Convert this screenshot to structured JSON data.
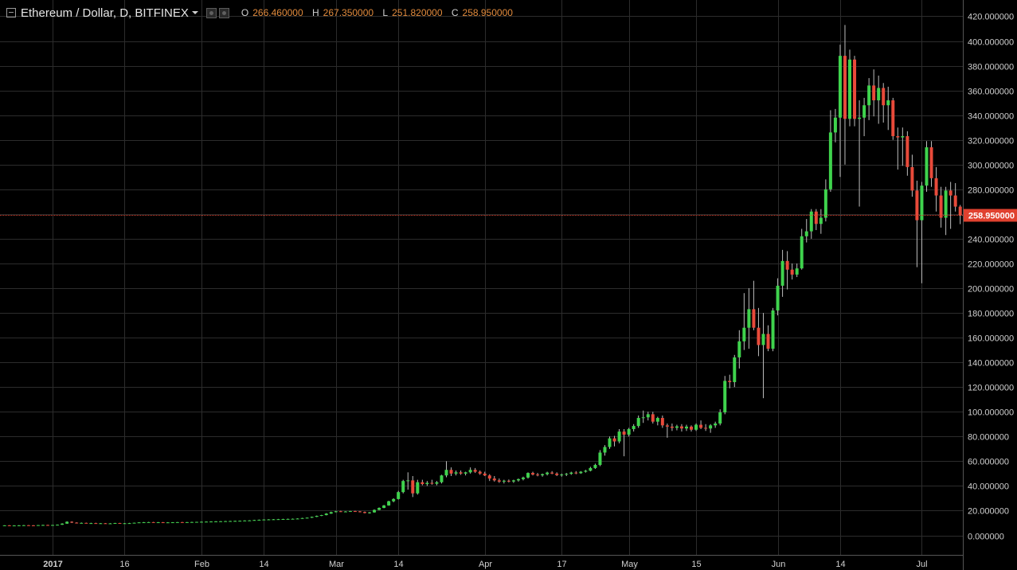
{
  "header": {
    "symbol": "Ethereum / Dollar, D, BITFINEX",
    "ohlc": [
      {
        "label": "O",
        "value": "266.460000"
      },
      {
        "label": "H",
        "value": "267.350000"
      },
      {
        "label": "L",
        "value": "251.820000"
      },
      {
        "label": "C",
        "value": "258.950000"
      }
    ]
  },
  "price_tag": "258.950000",
  "colors": {
    "up": "#3fd34d",
    "down": "#e84a3a",
    "grid": "#2c2c2c",
    "axis_text": "#d0d0d0",
    "price_line": "#d8412f"
  },
  "chart_data": {
    "type": "candlestick",
    "interval": "daily",
    "ylim": [
      -20,
      420
    ],
    "y_ticks": [
      "420.000000",
      "400.000000",
      "380.000000",
      "360.000000",
      "340.000000",
      "320.000000",
      "300.000000",
      "280.000000",
      "260.000000",
      "240.000000",
      "220.000000",
      "200.000000",
      "180.000000",
      "160.000000",
      "140.000000",
      "120.000000",
      "100.000000",
      "80.000000",
      "60.000000",
      "40.000000",
      "20.000000",
      "0.000000"
    ],
    "y_tick_values": [
      420,
      400,
      380,
      360,
      340,
      320,
      300,
      280,
      260,
      240,
      220,
      200,
      180,
      160,
      140,
      120,
      100,
      80,
      60,
      40,
      20,
      0
    ],
    "x_ticks": [
      "2017",
      "16",
      "Feb",
      "14",
      "Mar",
      "14",
      "Apr",
      "17",
      "May",
      "15",
      "Jun",
      "14",
      "Jul"
    ],
    "x_tick_days": [
      1,
      16,
      32,
      45,
      60,
      73,
      91,
      107,
      121,
      135,
      152,
      165,
      182
    ],
    "last_price": 258.95,
    "candles": [
      [
        -9,
        8.0,
        8.2,
        7.9,
        8.1
      ],
      [
        -8,
        8.1,
        8.3,
        7.9,
        8.0
      ],
      [
        -7,
        8.0,
        8.2,
        7.8,
        8.0
      ],
      [
        -6,
        8.0,
        8.3,
        7.9,
        8.1
      ],
      [
        -5,
        8.1,
        8.4,
        8.0,
        8.2
      ],
      [
        -4,
        8.2,
        8.4,
        8.0,
        8.1
      ],
      [
        -3,
        8.1,
        8.3,
        7.9,
        8.0
      ],
      [
        -2,
        8.0,
        8.4,
        7.9,
        8.3
      ],
      [
        -1,
        8.3,
        8.6,
        8.1,
        8.4
      ],
      [
        0,
        8.4,
        8.6,
        8.2,
        8.3
      ],
      [
        1,
        8.3,
        8.5,
        8.1,
        8.4
      ],
      [
        2,
        8.4,
        8.8,
        8.3,
        8.6
      ],
      [
        3,
        8.6,
        9.8,
        8.5,
        9.5
      ],
      [
        4,
        9.5,
        11.4,
        9.3,
        11.0
      ],
      [
        5,
        11.0,
        11.4,
        10.0,
        10.3
      ],
      [
        6,
        10.3,
        10.6,
        9.6,
        10.0
      ],
      [
        7,
        10.0,
        10.4,
        9.6,
        10.1
      ],
      [
        8,
        10.1,
        10.3,
        9.6,
        9.8
      ],
      [
        9,
        9.8,
        10.2,
        9.5,
        9.9
      ],
      [
        10,
        9.9,
        10.2,
        9.6,
        9.7
      ],
      [
        11,
        9.7,
        10.0,
        9.5,
        9.8
      ],
      [
        12,
        9.8,
        10.0,
        9.5,
        9.6
      ],
      [
        13,
        9.6,
        9.9,
        9.4,
        9.7
      ],
      [
        14,
        9.7,
        10.1,
        9.5,
        10.0
      ],
      [
        15,
        10.0,
        10.1,
        9.6,
        9.7
      ],
      [
        16,
        9.7,
        10.0,
        9.5,
        9.8
      ],
      [
        17,
        9.8,
        10.1,
        9.6,
        9.9
      ],
      [
        18,
        9.9,
        10.3,
        9.7,
        10.2
      ],
      [
        19,
        10.2,
        10.6,
        10.0,
        10.5
      ],
      [
        20,
        10.5,
        10.8,
        10.2,
        10.6
      ],
      [
        21,
        10.6,
        10.9,
        10.4,
        10.7
      ],
      [
        22,
        10.7,
        10.9,
        10.4,
        10.5
      ],
      [
        23,
        10.5,
        10.8,
        10.3,
        10.6
      ],
      [
        24,
        10.6,
        10.8,
        10.3,
        10.4
      ],
      [
        25,
        10.4,
        10.7,
        10.2,
        10.5
      ],
      [
        26,
        10.5,
        10.7,
        10.3,
        10.6
      ],
      [
        27,
        10.6,
        10.8,
        10.4,
        10.7
      ],
      [
        28,
        10.7,
        10.9,
        10.4,
        10.5
      ],
      [
        29,
        10.5,
        10.8,
        10.3,
        10.7
      ],
      [
        30,
        10.7,
        11.0,
        10.5,
        10.8
      ],
      [
        31,
        10.8,
        11.0,
        10.6,
        10.9
      ],
      [
        32,
        10.9,
        11.2,
        10.7,
        11.0
      ],
      [
        33,
        11.0,
        11.3,
        10.8,
        11.1
      ],
      [
        34,
        11.1,
        11.4,
        10.9,
        11.2
      ],
      [
        35,
        11.2,
        11.5,
        11.0,
        11.3
      ],
      [
        36,
        11.3,
        11.6,
        11.1,
        11.4
      ],
      [
        37,
        11.4,
        11.7,
        11.2,
        11.5
      ],
      [
        38,
        11.5,
        11.8,
        11.3,
        11.6
      ],
      [
        39,
        11.6,
        11.9,
        11.4,
        11.7
      ],
      [
        40,
        11.7,
        12.0,
        11.5,
        11.8
      ],
      [
        41,
        11.8,
        12.2,
        11.6,
        12.0
      ],
      [
        42,
        12.0,
        12.3,
        11.8,
        12.1
      ],
      [
        43,
        12.1,
        12.6,
        11.9,
        12.4
      ],
      [
        44,
        12.4,
        12.8,
        12.2,
        12.6
      ],
      [
        45,
        12.6,
        13.0,
        12.4,
        12.8
      ],
      [
        46,
        12.8,
        13.1,
        12.6,
        12.9
      ],
      [
        47,
        12.9,
        13.2,
        12.7,
        13.0
      ],
      [
        48,
        13.0,
        13.3,
        12.8,
        13.1
      ],
      [
        49,
        13.1,
        13.4,
        12.9,
        13.2
      ],
      [
        50,
        13.2,
        13.5,
        13.0,
        13.3
      ],
      [
        51,
        13.3,
        13.6,
        13.1,
        13.4
      ],
      [
        52,
        13.4,
        13.8,
        13.2,
        13.6
      ],
      [
        53,
        13.6,
        14.2,
        13.4,
        14.0
      ],
      [
        54,
        14.0,
        14.5,
        13.8,
        14.3
      ],
      [
        55,
        14.3,
        15.2,
        14.1,
        15.0
      ],
      [
        56,
        15.0,
        16.0,
        14.8,
        15.8
      ],
      [
        57,
        15.8,
        16.6,
        15.6,
        16.4
      ],
      [
        58,
        16.4,
        18.0,
        16.2,
        17.6
      ],
      [
        59,
        17.6,
        19.2,
        17.4,
        18.8
      ],
      [
        60,
        18.8,
        19.8,
        18.6,
        19.5
      ],
      [
        61,
        19.5,
        19.9,
        18.9,
        19.2
      ],
      [
        62,
        19.2,
        19.6,
        18.8,
        19.3
      ],
      [
        63,
        19.3,
        19.8,
        19.0,
        19.6
      ],
      [
        64,
        19.6,
        19.9,
        19.1,
        19.4
      ],
      [
        65,
        19.4,
        19.7,
        18.6,
        18.9
      ],
      [
        66,
        18.9,
        19.3,
        17.8,
        18.1
      ],
      [
        67,
        18.1,
        18.9,
        17.6,
        18.6
      ],
      [
        68,
        18.6,
        21.0,
        18.4,
        20.6
      ],
      [
        69,
        20.6,
        22.6,
        20.4,
        22.2
      ],
      [
        70,
        22.2,
        24.6,
        22.0,
        24.2
      ],
      [
        71,
        24.2,
        28.0,
        24.0,
        27.6
      ],
      [
        72,
        27.6,
        30.0,
        26.8,
        29.4
      ],
      [
        73,
        29.4,
        36.0,
        29.0,
        35.0
      ],
      [
        74,
        35.0,
        45.0,
        34.0,
        44.0
      ],
      [
        75,
        44.0,
        51.0,
        37.0,
        44.5
      ],
      [
        76,
        44.5,
        48.0,
        31.0,
        34.0
      ],
      [
        77,
        34.0,
        45.0,
        33.0,
        43.0
      ],
      [
        78,
        43.0,
        45.0,
        40.5,
        41.5
      ],
      [
        79,
        41.5,
        44.0,
        40.0,
        42.5
      ],
      [
        80,
        42.5,
        45.0,
        41.0,
        41.8
      ],
      [
        81,
        41.8,
        44.0,
        40.5,
        43.0
      ],
      [
        82,
        43.0,
        49.0,
        42.0,
        48.5
      ],
      [
        83,
        48.5,
        60.0,
        47.0,
        53.0
      ],
      [
        84,
        53.0,
        55.0,
        48.0,
        50.0
      ],
      [
        85,
        50.0,
        52.5,
        48.5,
        51.0
      ],
      [
        86,
        51.0,
        52.5,
        49.0,
        50.0
      ],
      [
        87,
        50.0,
        51.5,
        48.5,
        51.0
      ],
      [
        88,
        51.0,
        55.0,
        50.0,
        53.0
      ],
      [
        89,
        53.0,
        54.5,
        50.5,
        51.5
      ],
      [
        90,
        51.5,
        52.5,
        49.0,
        50.0
      ],
      [
        91,
        50.0,
        51.5,
        48.0,
        48.5
      ],
      [
        92,
        48.5,
        49.5,
        44.0,
        46.0
      ],
      [
        93,
        46.0,
        48.0,
        43.5,
        44.5
      ],
      [
        94,
        44.5,
        46.0,
        42.5,
        43.5
      ],
      [
        95,
        43.5,
        45.0,
        42.0,
        44.2
      ],
      [
        96,
        44.2,
        45.2,
        42.8,
        43.6
      ],
      [
        97,
        43.6,
        45.0,
        42.5,
        44.5
      ],
      [
        98,
        44.5,
        46.0,
        43.5,
        45.5
      ],
      [
        99,
        45.5,
        47.5,
        44.5,
        46.8
      ],
      [
        100,
        46.8,
        51.0,
        46.0,
        50.5
      ],
      [
        101,
        50.5,
        51.5,
        48.5,
        49.2
      ],
      [
        102,
        49.2,
        50.5,
        47.8,
        48.6
      ],
      [
        103,
        48.6,
        50.0,
        47.5,
        49.5
      ],
      [
        104,
        49.5,
        51.5,
        48.5,
        50.8
      ],
      [
        105,
        50.8,
        52.0,
        49.5,
        50.0
      ],
      [
        106,
        50.0,
        51.0,
        48.0,
        48.8
      ],
      [
        107,
        48.8,
        50.0,
        47.5,
        49.2
      ],
      [
        108,
        49.2,
        50.5,
        48.0,
        49.8
      ],
      [
        109,
        49.8,
        51.5,
        49.0,
        50.8
      ],
      [
        110,
        50.8,
        52.0,
        49.5,
        50.3
      ],
      [
        111,
        50.3,
        52.0,
        49.8,
        51.5
      ],
      [
        112,
        51.5,
        53.0,
        50.8,
        52.3
      ],
      [
        113,
        52.3,
        55.5,
        51.8,
        54.5
      ],
      [
        114,
        54.5,
        58.0,
        53.8,
        57.0
      ],
      [
        115,
        57.0,
        69.0,
        56.0,
        67.0
      ],
      [
        116,
        67.0,
        73.0,
        64.5,
        71.5
      ],
      [
        117,
        71.5,
        80.0,
        70.0,
        78.5
      ],
      [
        118,
        78.5,
        80.5,
        72.0,
        76.0
      ],
      [
        119,
        76.0,
        86.0,
        74.5,
        84.0
      ],
      [
        120,
        84.0,
        86.0,
        64.0,
        81.5
      ],
      [
        121,
        81.5,
        87.0,
        80.0,
        86.0
      ],
      [
        122,
        86.0,
        90.0,
        84.0,
        88.5
      ],
      [
        123,
        88.5,
        97.0,
        87.0,
        95.0
      ],
      [
        124,
        95.0,
        101.0,
        91.0,
        95.5
      ],
      [
        125,
        95.5,
        100.0,
        93.0,
        98.0
      ],
      [
        126,
        98.0,
        100.0,
        90.5,
        92.0
      ],
      [
        127,
        92.0,
        96.0,
        89.0,
        95.0
      ],
      [
        128,
        95.0,
        97.0,
        87.0,
        89.0
      ],
      [
        129,
        89.0,
        90.5,
        79.0,
        88.0
      ],
      [
        130,
        88.0,
        90.5,
        84.5,
        87.0
      ],
      [
        131,
        87.0,
        89.5,
        85.0,
        88.2
      ],
      [
        132,
        88.2,
        90.0,
        84.0,
        86.5
      ],
      [
        133,
        86.5,
        89.5,
        84.5,
        88.0
      ],
      [
        134,
        88.0,
        89.0,
        84.0,
        85.5
      ],
      [
        135,
        85.5,
        90.5,
        84.5,
        89.5
      ],
      [
        136,
        89.5,
        93.0,
        86.0,
        87.0
      ],
      [
        137,
        87.0,
        90.0,
        84.5,
        86.5
      ],
      [
        138,
        86.5,
        90.0,
        83.0,
        89.0
      ],
      [
        139,
        89.0,
        92.0,
        87.0,
        90.5
      ],
      [
        140,
        90.5,
        102.0,
        89.0,
        99.5
      ],
      [
        141,
        99.5,
        129.0,
        98.0,
        125.0
      ],
      [
        142,
        125.0,
        130.0,
        119.0,
        124.0
      ],
      [
        143,
        124.0,
        146.0,
        120.0,
        144.0
      ],
      [
        144,
        144.0,
        166.0,
        135.0,
        157.0
      ],
      [
        145,
        157.0,
        196.0,
        150.0,
        168.0
      ],
      [
        146,
        168.0,
        200.0,
        151.0,
        183.0
      ],
      [
        147,
        183.0,
        206.0,
        166.0,
        168.0
      ],
      [
        148,
        168.0,
        184.0,
        145.0,
        154.0
      ],
      [
        149,
        154.0,
        180.0,
        111.0,
        163.0
      ],
      [
        150,
        163.0,
        170.0,
        149.0,
        151.0
      ],
      [
        151,
        151.0,
        184.0,
        149.0,
        182.0
      ],
      [
        152,
        182.0,
        208.0,
        178.0,
        202.0
      ],
      [
        153,
        202.0,
        231.0,
        193.0,
        222.0
      ],
      [
        154,
        222.0,
        230.0,
        199.0,
        215.0
      ],
      [
        155,
        215.0,
        220.0,
        207.0,
        211.0
      ],
      [
        156,
        211.0,
        220.0,
        209.0,
        216.0
      ],
      [
        157,
        216.0,
        248.0,
        215.0,
        242.0
      ],
      [
        158,
        242.0,
        256.0,
        237.0,
        246.0
      ],
      [
        159,
        246.0,
        264.0,
        240.0,
        262.0
      ],
      [
        160,
        262.0,
        264.0,
        247.0,
        252.0
      ],
      [
        161,
        252.0,
        264.0,
        244.0,
        257.0
      ],
      [
        162,
        257.0,
        288.0,
        254.0,
        280.0
      ],
      [
        163,
        280.0,
        344.0,
        278.0,
        326.0
      ],
      [
        164,
        326.0,
        345.0,
        318.0,
        338.0
      ],
      [
        165,
        338.0,
        397.0,
        290.0,
        388.0
      ],
      [
        166,
        388.0,
        413.0,
        300.0,
        337.0
      ],
      [
        167,
        337.0,
        393.0,
        331.0,
        385.0
      ],
      [
        168,
        385.0,
        388.0,
        331.0,
        337.0
      ],
      [
        169,
        337.0,
        352.0,
        266.0,
        338.0
      ],
      [
        170,
        338.0,
        354.0,
        323.0,
        348.0
      ],
      [
        171,
        348.0,
        370.0,
        336.0,
        364.0
      ],
      [
        172,
        364.0,
        377.0,
        339.0,
        352.0
      ],
      [
        173,
        352.0,
        372.0,
        333.0,
        362.0
      ],
      [
        174,
        362.0,
        366.0,
        334.0,
        348.0
      ],
      [
        175,
        348.0,
        363.0,
        328.0,
        352.0
      ],
      [
        176,
        352.0,
        354.0,
        320.0,
        323.0
      ],
      [
        177,
        323.0,
        330.0,
        296.0,
        322.0
      ],
      [
        178,
        322.0,
        330.0,
        299.0,
        323.0
      ],
      [
        179,
        323.0,
        327.0,
        291.0,
        298.0
      ],
      [
        180,
        298.0,
        308.0,
        274.0,
        279.0
      ],
      [
        181,
        279.0,
        287.0,
        217.0,
        255.0
      ],
      [
        182,
        255.0,
        286.0,
        204.0,
        283.0
      ],
      [
        183,
        283.0,
        319.0,
        278.0,
        314.0
      ],
      [
        184,
        314.0,
        319.0,
        282.0,
        289.0
      ],
      [
        185,
        289.0,
        298.0,
        262.0,
        275.0
      ],
      [
        186,
        275.0,
        282.0,
        249.0,
        257.0
      ],
      [
        187,
        257.0,
        282.0,
        243.0,
        279.0
      ],
      [
        188,
        279.0,
        286.0,
        248.0,
        275.0
      ],
      [
        189,
        275.0,
        285.0,
        262.0,
        266.0
      ],
      [
        190,
        266.0,
        267.35,
        251.82,
        258.95
      ]
    ]
  }
}
